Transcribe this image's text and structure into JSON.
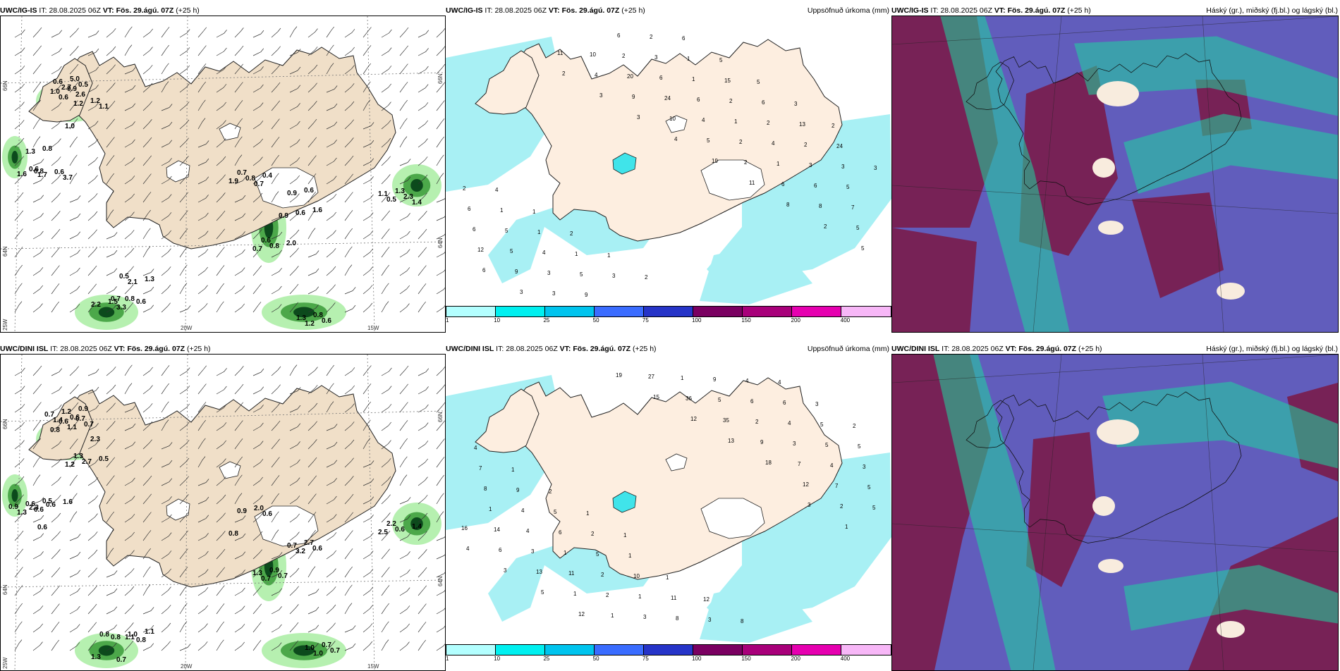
{
  "panels": {
    "p1": {
      "source": "UWC/IG-IS",
      "it_label": "IT:",
      "it_value": "28.08.2025 06Z",
      "vt_label": "VT:",
      "vt_value": "Fös. 29.ágú. 07Z",
      "lead": "(+25",
      "lead_wrap": "h)",
      "right_title": "",
      "ax_lat_top": "66N",
      "ax_lat_top_r": "66N",
      "ax_lat_mid": "64N",
      "ax_lat_mid_r": "64N",
      "ax_lon_left": "25W",
      "ax_lon_1": "20W",
      "ax_lon_2": "15W",
      "values": [
        "0.7",
        "0.9",
        "1.4",
        "2.1",
        "0.7",
        "3.3",
        "1.2",
        "3.7",
        "1.3",
        "0.6",
        "1.1",
        "2.7",
        "1.9",
        "0.6",
        "0.5",
        "1.3",
        "0.8",
        "2.2",
        "0.6",
        "1.7",
        "0.8",
        "2.6",
        "1.2",
        "0.5",
        "0.8",
        "0.9",
        "2.3",
        "0.5",
        "2.0",
        "1.5",
        "1.3",
        "0.6",
        "1.6",
        "1.0",
        "1.2",
        "0.6",
        "0.4",
        "0.6",
        "1.1",
        "0.6",
        "0.6",
        "0.8",
        "0.8",
        "0.6",
        "0.8",
        "0.9",
        "1.0",
        "5.0",
        "0.7",
        "1.6",
        "1.3",
        "0.7"
      ]
    },
    "p2": {
      "source": "UWC/IG-IS",
      "it_label": "IT:",
      "it_value": "28.08.2025 06Z",
      "vt_label": "VT:",
      "vt_value": "Fös. 29.ágú. 07Z",
      "lead": "(+25 h)",
      "right_title": "Uppsöfnuð úrkoma (mm)",
      "values": [
        "2",
        "3",
        "3",
        "4",
        "19",
        "11",
        "8",
        "2",
        "5",
        "6",
        "3",
        "11",
        "4",
        "9",
        "10",
        "5",
        "2",
        "6",
        "8",
        "5",
        "12",
        "9",
        "3",
        "10",
        "20",
        "24",
        "4",
        "2",
        "1",
        "6",
        "7",
        "6",
        "5",
        "3",
        "9",
        "2",
        "6",
        "6",
        "1",
        "4",
        "3",
        "5",
        "6",
        "5",
        "4",
        "5",
        "6",
        "3",
        "1",
        "2",
        "2",
        "2",
        "3",
        "2",
        "1",
        "1",
        "1",
        "3",
        "2",
        "1",
        "15",
        "6",
        "13",
        "24",
        "3",
        "4",
        "1",
        "2",
        "1",
        "2",
        "6",
        "5",
        "5",
        "3",
        "2"
      ],
      "legend_ticks": [
        "1",
        "10",
        "25",
        "50",
        "75",
        "100",
        "150",
        "200",
        "400"
      ]
    },
    "p3": {
      "source": "UWC/IG-IS",
      "it_label": "IT:",
      "it_value": "28.08.2025 06Z",
      "vt_label": "VT:",
      "vt_value": "Fös. 29.ágú. 07Z",
      "lead": "(+25 h)",
      "right_title": "Háský (gr.), miðský (fj.bl.) og lágský (bl.)"
    },
    "p4": {
      "source": "UWC/DINI ISL",
      "it_label": "IT:",
      "it_value": "28.08.2025 06Z",
      "vt_label": "VT:",
      "vt_value": "Fös. 29.ágú. 07Z",
      "lead": "(+25 h)",
      "right_title": "",
      "ax_lat_top": "66N",
      "ax_lat_top_r": "66N",
      "ax_lat_mid": "64N",
      "ax_lat_mid_r": "64N",
      "ax_lon_left": "25W",
      "ax_lon_1": "20W",
      "ax_lon_2": "15W",
      "values": [
        "1.3",
        "0.8",
        "2.3",
        "1.4",
        "0.6",
        "3.2",
        "2.5",
        "0.8",
        "0.7",
        "1.1",
        "1.0",
        "2.3",
        "0.6",
        "1.1",
        "1.2",
        "0.6",
        "0.9",
        "0.6",
        "0.6",
        "0.8",
        "0.7",
        "0.8",
        "0.7",
        "0.6",
        "0.9",
        "0.7",
        "2.7",
        "0.7",
        "2.0",
        "0.7",
        "1.4",
        "1.0",
        "1.3",
        "0.7",
        "1.0",
        "1.6",
        "0.6",
        "0.6",
        "0.5",
        "1.2",
        "0.8",
        "2.7",
        "2.2",
        "1.1",
        "0.9",
        "1.3",
        "0.7",
        "0.6",
        "0.5",
        "0.7",
        "1.3",
        "0.9"
      ]
    },
    "p5": {
      "source": "UWC/DINI ISL",
      "it_label": "IT:",
      "it_value": "28.08.2025 06Z",
      "vt_label": "VT:",
      "vt_value": "Fös. 29.ágú. 07Z",
      "lead": "(+25 h)",
      "right_title": "Uppsöfnuð úrkoma (mm)",
      "values": [
        "3",
        "1",
        "4",
        "3",
        "5",
        "12",
        "19",
        "15",
        "12",
        "13",
        "18",
        "12",
        "2",
        "16",
        "6",
        "13",
        "1",
        "1",
        "27",
        "36",
        "35",
        "9",
        "7",
        "7",
        "5",
        "14",
        "3",
        "11",
        "2",
        "3",
        "1",
        "5",
        "2",
        "3",
        "4",
        "5",
        "1",
        "4",
        "1",
        "2",
        "1",
        "8",
        "9",
        "6",
        "4",
        "5",
        "3",
        "8",
        "4",
        "6",
        "5",
        "10",
        "11",
        "3",
        "4",
        "6",
        "5",
        "5",
        "7",
        "9",
        "5",
        "2",
        "1",
        "1",
        "12",
        "8",
        "4",
        "3",
        "2",
        "4",
        "1",
        "2",
        "1",
        "1"
      ],
      "legend_ticks": [
        "1",
        "10",
        "25",
        "50",
        "75",
        "100",
        "150",
        "200",
        "400"
      ]
    },
    "p6": {
      "source": "UWC/DINI ISL",
      "it_label": "IT:",
      "it_value": "28.08.2025 06Z",
      "vt_label": "VT:",
      "vt_value": "Fös. 29.ágú. 07Z",
      "lead": "(+25 h)",
      "right_title": "Háský (gr.), miðský (fj.bl.) og lágský (bl.)"
    }
  },
  "legend_colors": [
    "#b3ffff",
    "#00f0f0",
    "#00c4ee",
    "#3a6cff",
    "#2634c8",
    "#7a0061",
    "#a8007a",
    "#e600b0",
    "#f7b7f7"
  ],
  "colors": {
    "land": "#f0dfc8",
    "land_p2": "#fdeee0",
    "precip_light": "#a8f0f4",
    "precip_mid": "#40e4ea",
    "green_light": "#b6f0b0",
    "green_mid": "#4ca84a",
    "green_dark": "#0c4a1c",
    "cloud_low": "#6a5ec8",
    "cloud_mid": "#7a1c4a",
    "cloud_high": "#1ed6a0",
    "cloud_base": "#345a7a"
  }
}
